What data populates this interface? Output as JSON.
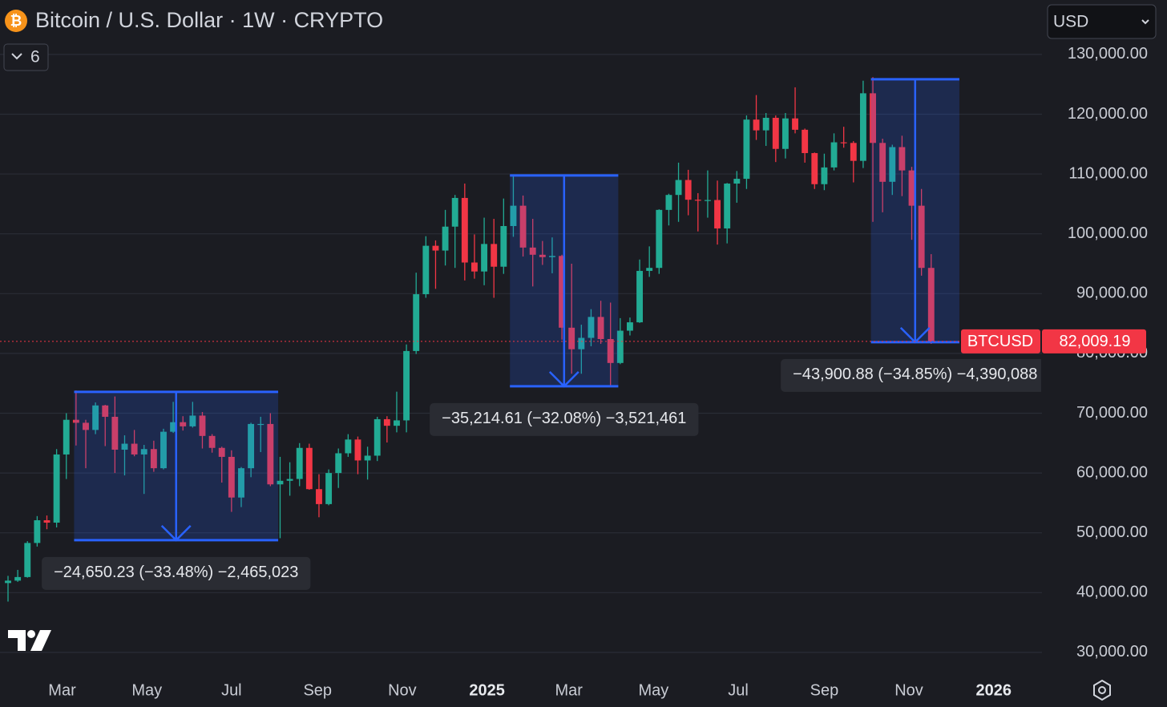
{
  "header": {
    "title": "Bitcoin / U.S. Dollar · 1W · CRYPTO",
    "collapsed_count": 6,
    "currency": "USD"
  },
  "chart_data": {
    "type": "candlestick",
    "up_color": "#22ab94",
    "down_color": "#f23645",
    "xlim": [
      -0.825,
      106.4
    ],
    "xticks": [
      {
        "value": 5.57,
        "label": "Mar"
      },
      {
        "value": 14.29,
        "label": "May"
      },
      {
        "value": 23.0,
        "label": "Jul"
      },
      {
        "value": 31.86,
        "label": "Sep"
      },
      {
        "value": 40.57,
        "label": "Nov"
      },
      {
        "value": 49.29,
        "label": "2025"
      },
      {
        "value": 57.71,
        "label": "Mar"
      },
      {
        "value": 66.43,
        "label": "May"
      },
      {
        "value": 75.14,
        "label": "Jul"
      },
      {
        "value": 84.0,
        "label": "Sep"
      },
      {
        "value": 92.71,
        "label": "Nov"
      },
      {
        "value": 101.43,
        "label": "2026"
      }
    ],
    "ylim": [
      26500,
      139100
    ],
    "yticks": [
      {
        "value": 30000,
        "label": "30,000.00"
      },
      {
        "value": 40000,
        "label": "40,000.00"
      },
      {
        "value": 50000,
        "label": "50,000.00"
      },
      {
        "value": 60000,
        "label": "60,000.00"
      },
      {
        "value": 70000,
        "label": "70,000.00"
      },
      {
        "value": 80000,
        "label": "80,000.00"
      },
      {
        "value": 90000,
        "label": "90,000.00"
      },
      {
        "value": 100000,
        "label": "100,000.00"
      },
      {
        "value": 110000,
        "label": "110,000.00"
      },
      {
        "value": 120000,
        "label": "120,000.00"
      },
      {
        "value": 130000,
        "label": "130,000.00"
      }
    ],
    "grid": true,
    "symbol": "BTCUSD",
    "last_price": {
      "value": 82009.19,
      "label": "82,009.19"
    },
    "candles": [
      [
        41600,
        42800,
        38500,
        42000
      ],
      [
        42000,
        43800,
        41800,
        42600
      ],
      [
        42600,
        48600,
        42500,
        48300
      ],
      [
        48300,
        52800,
        47700,
        52100
      ],
      [
        52100,
        52900,
        50600,
        51700
      ],
      [
        51700,
        64000,
        50900,
        63100
      ],
      [
        63100,
        70000,
        59000,
        68900
      ],
      [
        68900,
        73800,
        64600,
        68400
      ],
      [
        68400,
        68900,
        60800,
        67200
      ],
      [
        67200,
        71800,
        66500,
        71300
      ],
      [
        71300,
        71400,
        64500,
        69400
      ],
      [
        69400,
        72800,
        60000,
        63900
      ],
      [
        63900,
        66300,
        59600,
        64900
      ],
      [
        64900,
        67200,
        62800,
        63100
      ],
      [
        63100,
        64700,
        56500,
        64000
      ],
      [
        64000,
        65400,
        60200,
        60800
      ],
      [
        60800,
        67400,
        60600,
        66900
      ],
      [
        66900,
        71900,
        66700,
        68500
      ],
      [
        68500,
        69500,
        67100,
        67800
      ],
      [
        67800,
        71900,
        67600,
        69600
      ],
      [
        69600,
        70200,
        64100,
        66200
      ],
      [
        66200,
        66500,
        63400,
        64200
      ],
      [
        64200,
        64400,
        58400,
        62700
      ],
      [
        62700,
        63800,
        53500,
        55900
      ],
      [
        55900,
        61000,
        54300,
        60800
      ],
      [
        60800,
        68400,
        59300,
        68200
      ],
      [
        68200,
        69400,
        63500,
        68200
      ],
      [
        68200,
        70000,
        57800,
        58100
      ],
      [
        58100,
        62700,
        49100,
        58700
      ],
      [
        58700,
        61800,
        56200,
        59000
      ],
      [
        59000,
        65000,
        57800,
        64200
      ],
      [
        64200,
        64900,
        57200,
        57300
      ],
      [
        57300,
        59800,
        52600,
        54800
      ],
      [
        54800,
        60600,
        54600,
        60000
      ],
      [
        60000,
        64100,
        57500,
        63300
      ],
      [
        63300,
        66500,
        62700,
        65600
      ],
      [
        65600,
        66100,
        59800,
        62100
      ],
      [
        62100,
        64400,
        58900,
        62900
      ],
      [
        62900,
        69400,
        62000,
        69000
      ],
      [
        69000,
        69500,
        65100,
        67900
      ],
      [
        67900,
        73600,
        66800,
        68800
      ],
      [
        68800,
        81500,
        66800,
        80400
      ],
      [
        80400,
        93500,
        79900,
        89900
      ],
      [
        89900,
        99600,
        89300,
        98000
      ],
      [
        98000,
        98900,
        90800,
        97200
      ],
      [
        97200,
        104000,
        94700,
        101200
      ],
      [
        101200,
        106500,
        94300,
        106000
      ],
      [
        106000,
        108400,
        92200,
        95200
      ],
      [
        95200,
        99900,
        92500,
        93700
      ],
      [
        93700,
        102700,
        91400,
        98300
      ],
      [
        98300,
        102500,
        89300,
        94500
      ],
      [
        94500,
        105900,
        93300,
        101300
      ],
      [
        101300,
        109600,
        99500,
        104700
      ],
      [
        104700,
        106400,
        96200,
        97700
      ],
      [
        97700,
        102500,
        91200,
        96500
      ],
      [
        96500,
        98800,
        94800,
        96100
      ],
      [
        96100,
        99400,
        93400,
        96300
      ],
      [
        96300,
        96500,
        82300,
        84300
      ],
      [
        84300,
        95000,
        76600,
        80700
      ],
      [
        80700,
        84800,
        76600,
        82600
      ],
      [
        82600,
        87400,
        81200,
        86100
      ],
      [
        86100,
        88800,
        81600,
        82400
      ],
      [
        82400,
        88500,
        74500,
        78400
      ],
      [
        78400,
        85900,
        78200,
        83800
      ],
      [
        83800,
        86000,
        83000,
        85200
      ],
      [
        85200,
        95700,
        85100,
        93800
      ],
      [
        93800,
        97900,
        92800,
        94300
      ],
      [
        94300,
        104100,
        93300,
        104000
      ],
      [
        104000,
        106700,
        101400,
        106500
      ],
      [
        106500,
        111900,
        102000,
        109000
      ],
      [
        109000,
        110700,
        103100,
        105700
      ],
      [
        105700,
        106800,
        100400,
        105600
      ],
      [
        105600,
        110600,
        102700,
        105650
      ],
      [
        105650,
        108900,
        98200,
        100900
      ],
      [
        100900,
        108500,
        98400,
        108400
      ],
      [
        108400,
        110500,
        105200,
        109200
      ],
      [
        109200,
        119800,
        107500,
        119100
      ],
      [
        119100,
        123200,
        115700,
        117300
      ],
      [
        117300,
        120200,
        114700,
        119400
      ],
      [
        119400,
        119800,
        112000,
        114200
      ],
      [
        114200,
        120200,
        112600,
        119300
      ],
      [
        119300,
        124500,
        116800,
        117400
      ],
      [
        117400,
        117600,
        111900,
        113500
      ],
      [
        113500,
        113600,
        107500,
        108300
      ],
      [
        108300,
        113400,
        107300,
        111100
      ],
      [
        111100,
        116800,
        110600,
        115300
      ],
      [
        115300,
        117900,
        114400,
        115200
      ],
      [
        115200,
        115500,
        108600,
        112200
      ],
      [
        112200,
        125600,
        111000,
        123500
      ],
      [
        123500,
        126200,
        102000,
        115200
      ],
      [
        115200,
        115900,
        103600,
        108700
      ],
      [
        108700,
        114900,
        106500,
        114500
      ],
      [
        114500,
        116400,
        106300,
        110600
      ],
      [
        110600,
        111200,
        99000,
        104700
      ],
      [
        104700,
        107500,
        93000,
        94300
      ],
      [
        94300,
        96600,
        81600,
        82009.19
      ]
    ],
    "measures": [
      {
        "label": "−24,650.23 (−33.48%) −2,465,023",
        "high": 73565,
        "low": 48767,
        "start": 6.8,
        "end": 27.8
      },
      {
        "label": "−35,214.61 (−32.08%) −3,521,461",
        "high": 109759,
        "low": 74504,
        "start": 51.65,
        "end": 62.8
      },
      {
        "label": "−43,900.88 (−34.85%) −4,390,088",
        "high": 125845,
        "low": 81877,
        "start": 88.8,
        "end": 97.9
      }
    ]
  }
}
